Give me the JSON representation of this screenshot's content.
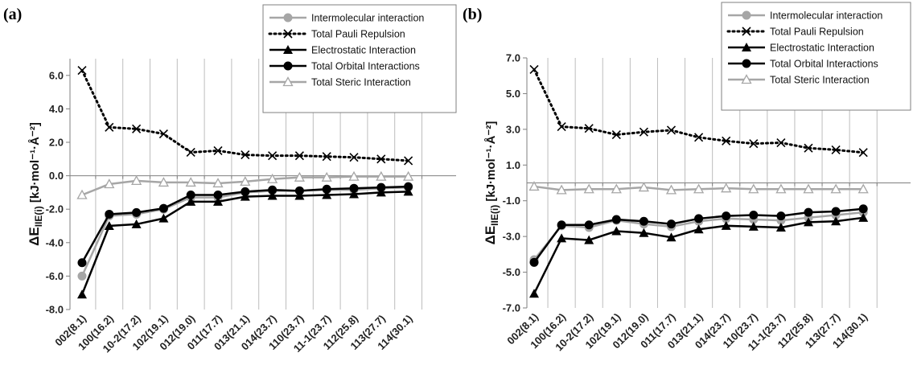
{
  "chart_data": [
    {
      "type": "line",
      "panel_label": "(a)",
      "ylabel_main": "ΔE",
      "ylabel_sub": "IIE(i)",
      "ylabel_unit": "[kJ·mol⁻¹·Å⁻²]",
      "ylim": [
        -8,
        7
      ],
      "yticks": [
        -8,
        -6,
        -4,
        -2,
        0,
        2,
        4,
        6
      ],
      "ytick_labels": [
        "-8.0",
        "-6.0",
        "-4.0",
        "-2.0",
        "0.0",
        "2.0",
        "4.0",
        "6.0"
      ],
      "grid": "vertical",
      "legend_position": "top-right",
      "categories": [
        "002(8.1)",
        "100(16.2)",
        "10-2(17.2)",
        "102(19.1)",
        "012(19.0)",
        "011(17.7)",
        "013(21.1)",
        "014(23.7)",
        "110(23.7)",
        "11-1(23.7)",
        "112(25.8)",
        "113(27.7)",
        "114(30.1)"
      ],
      "series": [
        {
          "name": "Intermolecular interaction",
          "color": "#a6a6a6",
          "dash": "solid",
          "marker": "circle",
          "values": [
            -6.0,
            -2.4,
            -2.3,
            -2.0,
            -1.3,
            -1.3,
            -1.0,
            -0.9,
            -0.9,
            -0.85,
            -0.85,
            -0.75,
            -0.7
          ]
        },
        {
          "name": "Total Pauli Repulsion",
          "color": "#000000",
          "dash": "dotted",
          "marker": "x",
          "values": [
            6.3,
            2.9,
            2.8,
            2.5,
            1.4,
            1.5,
            1.25,
            1.2,
            1.2,
            1.15,
            1.1,
            1.0,
            0.9
          ]
        },
        {
          "name": "Electrostatic Interaction",
          "color": "#000000",
          "dash": "solid",
          "marker": "triangle",
          "values": [
            -7.1,
            -3.0,
            -2.9,
            -2.55,
            -1.55,
            -1.55,
            -1.25,
            -1.2,
            -1.2,
            -1.15,
            -1.1,
            -1.0,
            -0.95
          ]
        },
        {
          "name": "Total Orbital Interactions",
          "color": "#000000",
          "dash": "solid",
          "marker": "circle",
          "values": [
            -5.2,
            -2.3,
            -2.2,
            -1.95,
            -1.15,
            -1.15,
            -0.95,
            -0.85,
            -0.9,
            -0.8,
            -0.75,
            -0.7,
            -0.65
          ]
        },
        {
          "name": "Total Steric Interaction",
          "color": "#a6a6a6",
          "dash": "solid",
          "marker": "triangle-open",
          "values": [
            -1.15,
            -0.5,
            -0.3,
            -0.4,
            -0.4,
            -0.45,
            -0.35,
            -0.2,
            -0.1,
            -0.1,
            -0.05,
            -0.05,
            -0.05
          ]
        }
      ]
    },
    {
      "type": "line",
      "panel_label": "(b)",
      "ylabel_main": "ΔE",
      "ylabel_sub": "IIE(i)",
      "ylabel_unit": "[kJ·mol⁻¹·Å⁻²]",
      "ylim": [
        -7,
        7
      ],
      "yticks": [
        -7,
        -5,
        -3,
        -1,
        1,
        3,
        5,
        7
      ],
      "ytick_labels": [
        "-7.0",
        "-5.0",
        "-3.0",
        "-1.0",
        "1.0",
        "3.0",
        "5.0",
        "7.0"
      ],
      "grid": "vertical",
      "legend_position": "top-right",
      "categories": [
        "002(8.1)",
        "100(16.2)",
        "10-2(17.2)",
        "102(19.1)",
        "012(19.0)",
        "011(17.7)",
        "013(21.1)",
        "014(23.7)",
        "110(23.7)",
        "11-1(23.7)",
        "112(25.8)",
        "113(27.7)",
        "114(30.1)"
      ],
      "series": [
        {
          "name": "Intermolecular interaction",
          "color": "#a6a6a6",
          "dash": "solid",
          "marker": "circle",
          "values": [
            -4.3,
            -2.4,
            -2.5,
            -2.1,
            -2.3,
            -2.45,
            -2.15,
            -2.0,
            -2.05,
            -2.1,
            -1.95,
            -1.8,
            -1.65
          ]
        },
        {
          "name": "Total Pauli Repulsion",
          "color": "#000000",
          "dash": "dotted",
          "marker": "x",
          "values": [
            6.35,
            3.15,
            3.05,
            2.7,
            2.85,
            2.95,
            2.55,
            2.35,
            2.2,
            2.25,
            1.95,
            1.85,
            1.7
          ]
        },
        {
          "name": "Electrostatic Interaction",
          "color": "#000000",
          "dash": "solid",
          "marker": "triangle",
          "values": [
            -6.2,
            -3.1,
            -3.2,
            -2.7,
            -2.8,
            -3.05,
            -2.6,
            -2.4,
            -2.45,
            -2.5,
            -2.2,
            -2.15,
            -1.95
          ]
        },
        {
          "name": "Total Orbital Interactions",
          "color": "#000000",
          "dash": "solid",
          "marker": "circle",
          "values": [
            -4.45,
            -2.35,
            -2.35,
            -2.05,
            -2.15,
            -2.3,
            -2.0,
            -1.85,
            -1.8,
            -1.85,
            -1.65,
            -1.6,
            -1.45
          ]
        },
        {
          "name": "Total Steric Interaction",
          "color": "#a6a6a6",
          "dash": "solid",
          "marker": "triangle-open",
          "values": [
            -0.2,
            -0.4,
            -0.35,
            -0.35,
            -0.25,
            -0.4,
            -0.35,
            -0.3,
            -0.35,
            -0.35,
            -0.35,
            -0.35,
            -0.35
          ]
        }
      ]
    }
  ]
}
